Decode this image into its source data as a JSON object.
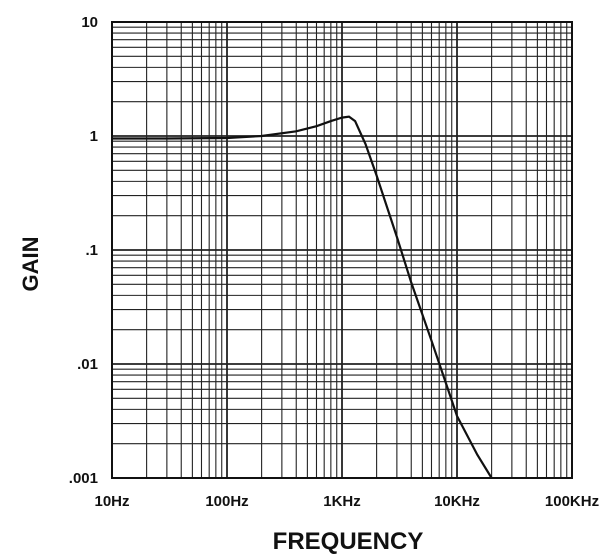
{
  "chart_data": {
    "type": "line",
    "xlabel": "FREQUENCY",
    "ylabel": "GAIN",
    "x_scale": "log",
    "y_scale": "log",
    "xlim": [
      10,
      100000
    ],
    "ylim": [
      0.001,
      10
    ],
    "x_ticks": [
      {
        "value": 10,
        "label": "10Hz"
      },
      {
        "value": 100,
        "label": "100Hz"
      },
      {
        "value": 1000,
        "label": "1KHz"
      },
      {
        "value": 10000,
        "label": "10KHz"
      },
      {
        "value": 100000,
        "label": "100KHz"
      }
    ],
    "y_ticks": [
      {
        "value": 10,
        "label": "10"
      },
      {
        "value": 1,
        "label": "1"
      },
      {
        "value": 0.1,
        "label": ".1"
      },
      {
        "value": 0.01,
        "label": ".01"
      },
      {
        "value": 0.001,
        "label": ".001"
      }
    ],
    "grid": true,
    "series": [
      {
        "x": [
          10,
          30,
          100,
          200,
          400,
          600,
          800,
          1000,
          1150,
          1300,
          1600,
          2000,
          3000,
          4000,
          6000,
          8000,
          10000,
          15000,
          20000
        ],
        "y": [
          0.95,
          0.95,
          0.96,
          1.0,
          1.1,
          1.22,
          1.35,
          1.45,
          1.48,
          1.35,
          0.85,
          0.45,
          0.13,
          0.052,
          0.016,
          0.0068,
          0.0035,
          0.0016,
          0.001
        ]
      }
    ]
  },
  "colors": {
    "line": "#111111",
    "grid": "#222222",
    "background": "#ffffff"
  }
}
